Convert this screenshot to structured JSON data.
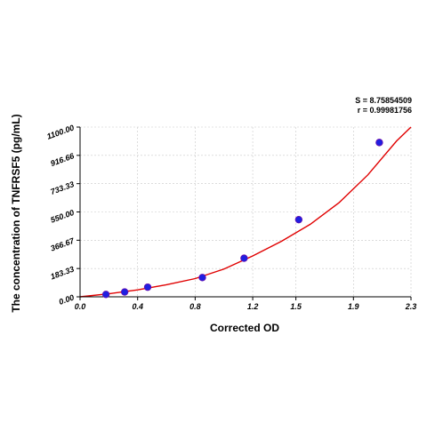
{
  "chart_data": {
    "type": "scatter",
    "title": "",
    "xlabel": "Corrected OD",
    "ylabel": "The concentration of TNFRSF5 (pg/mL)",
    "xlim": [
      0.0,
      2.3
    ],
    "ylim": [
      0.0,
      1100.0
    ],
    "x_ticks": [
      0.0,
      0.4,
      0.8,
      1.2,
      1.5,
      1.9,
      2.3
    ],
    "x_tick_labels": [
      "0.0",
      "0.4",
      "0.8",
      "1.2",
      "1.5",
      "1.9",
      "2.3"
    ],
    "y_ticks": [
      0.0,
      183.33,
      366.67,
      550.0,
      733.33,
      916.66,
      1100.0
    ],
    "y_tick_labels": [
      "0.00",
      "183.33",
      "366.67",
      "550.00",
      "733.33",
      "916.66",
      "1100.00"
    ],
    "grid": true,
    "series": [
      {
        "x": [
          0.18,
          0.31,
          0.47,
          0.85,
          1.14,
          1.52,
          2.08
        ],
        "y": [
          15.6,
          31.2,
          62.5,
          125,
          250,
          500,
          1000
        ],
        "color": "#1f1fe0"
      }
    ],
    "fit_curve": {
      "x": [
        0.0,
        0.2,
        0.4,
        0.6,
        0.8,
        1.0,
        1.2,
        1.4,
        1.6,
        1.8,
        2.0,
        2.2,
        2.3
      ],
      "y": [
        0,
        20,
        45,
        78,
        118,
        180,
        265,
        360,
        470,
        610,
        790,
        1010,
        1100
      ],
      "color": "#e00000"
    },
    "annotations": [
      "S = 8.75854509",
      "r = 0.99981756"
    ]
  }
}
